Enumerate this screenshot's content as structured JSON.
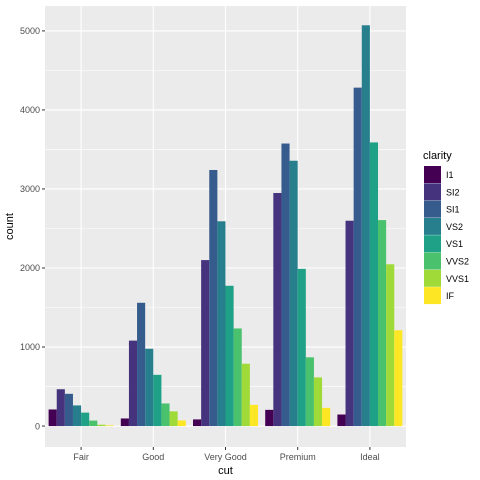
{
  "chart_data": {
    "type": "bar",
    "position": "dodge",
    "xlabel": "cut",
    "ylabel": "count",
    "categories": [
      "Fair",
      "Good",
      "Very Good",
      "Premium",
      "Ideal"
    ],
    "ylim": [
      0,
      5300
    ],
    "yticks": [
      0,
      1000,
      2000,
      3000,
      4000,
      5000
    ],
    "grid": true,
    "panel_background": "#ebebeb",
    "grid_color": "#ffffff",
    "legend": {
      "title": "clarity",
      "placement": "right"
    },
    "series": [
      {
        "name": "I1",
        "color": "#440154",
        "values": [
          210,
          96,
          84,
          205,
          146
        ]
      },
      {
        "name": "SI2",
        "color": "#46337e",
        "values": [
          466,
          1081,
          2100,
          2949,
          2598
        ]
      },
      {
        "name": "SI1",
        "color": "#365c8d",
        "values": [
          408,
          1560,
          3240,
          3575,
          4282
        ]
      },
      {
        "name": "VS2",
        "color": "#277f8e",
        "values": [
          261,
          978,
          2591,
          3357,
          5071
        ]
      },
      {
        "name": "VS1",
        "color": "#1fa187",
        "values": [
          170,
          648,
          1775,
          1989,
          3589
        ]
      },
      {
        "name": "VVS2",
        "color": "#4ac16d",
        "values": [
          69,
          286,
          1235,
          870,
          2606
        ]
      },
      {
        "name": "VVS1",
        "color": "#a0da39",
        "values": [
          17,
          186,
          789,
          616,
          2047
        ]
      },
      {
        "name": "IF",
        "color": "#fde725",
        "values": [
          9,
          71,
          268,
          230,
          1212
        ]
      }
    ]
  }
}
